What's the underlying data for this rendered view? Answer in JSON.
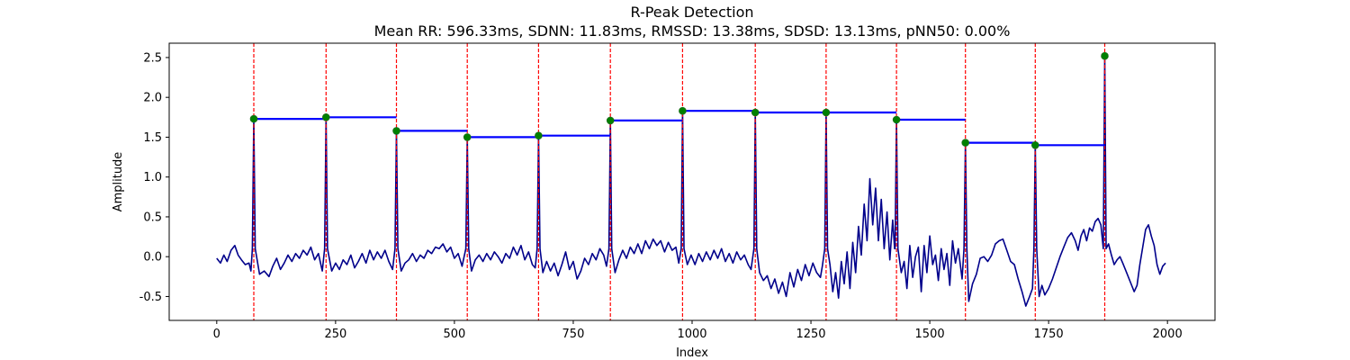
{
  "chart_data": {
    "type": "line",
    "title": "R-Peak Detection",
    "subtitle": "Mean RR: 596.33ms, SDNN: 11.83ms, RMSSD: 13.38ms, SDSD: 13.13ms, pNN50: 0.00%",
    "xlabel": "Index",
    "ylabel": "Amplitude",
    "xlim": [
      -100,
      2100
    ],
    "ylim": [
      -0.8,
      2.68
    ],
    "xticks": [
      0,
      250,
      500,
      750,
      1000,
      1250,
      1500,
      1750,
      2000
    ],
    "yticks": [
      -0.5,
      0.0,
      0.5,
      1.0,
      1.5,
      2.0,
      2.5
    ],
    "grid": false,
    "colors": {
      "signal": "#00008b",
      "peak_lines": "#ff0000",
      "rr_segments": "#0000ff",
      "peak_markers": "#008000"
    },
    "peaks": [
      {
        "x": 78,
        "y": 1.73
      },
      {
        "x": 230,
        "y": 1.75
      },
      {
        "x": 378,
        "y": 1.58
      },
      {
        "x": 527,
        "y": 1.5
      },
      {
        "x": 677,
        "y": 1.52
      },
      {
        "x": 828,
        "y": 1.71
      },
      {
        "x": 980,
        "y": 1.83
      },
      {
        "x": 1133,
        "y": 1.81
      },
      {
        "x": 1282,
        "y": 1.81
      },
      {
        "x": 1430,
        "y": 1.72
      },
      {
        "x": 1575,
        "y": 1.43
      },
      {
        "x": 1722,
        "y": 1.4
      },
      {
        "x": 1868,
        "y": 2.52
      }
    ],
    "baseline": [
      [
        0,
        -0.02
      ],
      [
        8,
        -0.08
      ],
      [
        15,
        0.02
      ],
      [
        22,
        -0.06
      ],
      [
        30,
        0.08
      ],
      [
        38,
        0.14
      ],
      [
        45,
        0.02
      ],
      [
        52,
        -0.04
      ],
      [
        60,
        -0.1
      ],
      [
        68,
        -0.08
      ],
      [
        72,
        -0.18
      ],
      [
        90,
        -0.22
      ],
      [
        100,
        -0.18
      ],
      [
        110,
        -0.25
      ],
      [
        118,
        -0.12
      ],
      [
        126,
        -0.02
      ],
      [
        134,
        -0.16
      ],
      [
        142,
        -0.08
      ],
      [
        150,
        0.02
      ],
      [
        158,
        -0.06
      ],
      [
        166,
        0.04
      ],
      [
        174,
        -0.02
      ],
      [
        182,
        0.08
      ],
      [
        190,
        0.02
      ],
      [
        198,
        0.12
      ],
      [
        206,
        -0.04
      ],
      [
        214,
        0.04
      ],
      [
        222,
        -0.18
      ],
      [
        242,
        -0.18
      ],
      [
        250,
        -0.08
      ],
      [
        258,
        -0.16
      ],
      [
        266,
        -0.04
      ],
      [
        274,
        -0.1
      ],
      [
        282,
        0.02
      ],
      [
        290,
        -0.14
      ],
      [
        298,
        -0.06
      ],
      [
        306,
        0.04
      ],
      [
        314,
        -0.08
      ],
      [
        322,
        0.08
      ],
      [
        330,
        -0.04
      ],
      [
        338,
        0.06
      ],
      [
        346,
        -0.02
      ],
      [
        354,
        0.08
      ],
      [
        362,
        -0.06
      ],
      [
        370,
        -0.16
      ],
      [
        388,
        -0.18
      ],
      [
        396,
        -0.08
      ],
      [
        404,
        -0.04
      ],
      [
        412,
        0.04
      ],
      [
        420,
        -0.06
      ],
      [
        428,
        0.02
      ],
      [
        436,
        -0.02
      ],
      [
        444,
        0.08
      ],
      [
        452,
        0.04
      ],
      [
        460,
        0.12
      ],
      [
        468,
        0.1
      ],
      [
        476,
        0.16
      ],
      [
        484,
        0.06
      ],
      [
        492,
        0.12
      ],
      [
        500,
        -0.02
      ],
      [
        508,
        0.04
      ],
      [
        516,
        -0.12
      ],
      [
        536,
        -0.18
      ],
      [
        544,
        -0.04
      ],
      [
        552,
        0.02
      ],
      [
        560,
        -0.06
      ],
      [
        568,
        0.04
      ],
      [
        576,
        -0.04
      ],
      [
        584,
        0.06
      ],
      [
        592,
        0.0
      ],
      [
        600,
        -0.08
      ],
      [
        608,
        0.04
      ],
      [
        616,
        -0.02
      ],
      [
        624,
        0.12
      ],
      [
        632,
        0.02
      ],
      [
        640,
        0.14
      ],
      [
        648,
        -0.04
      ],
      [
        656,
        0.06
      ],
      [
        664,
        -0.1
      ],
      [
        670,
        -0.14
      ],
      [
        686,
        -0.2
      ],
      [
        694,
        -0.06
      ],
      [
        702,
        -0.18
      ],
      [
        710,
        -0.08
      ],
      [
        718,
        -0.24
      ],
      [
        726,
        -0.1
      ],
      [
        734,
        0.06
      ],
      [
        742,
        -0.16
      ],
      [
        750,
        -0.06
      ],
      [
        758,
        -0.28
      ],
      [
        766,
        -0.18
      ],
      [
        774,
        -0.02
      ],
      [
        782,
        -0.1
      ],
      [
        790,
        0.04
      ],
      [
        798,
        -0.04
      ],
      [
        806,
        0.1
      ],
      [
        814,
        0.02
      ],
      [
        820,
        -0.12
      ],
      [
        838,
        -0.2
      ],
      [
        846,
        -0.04
      ],
      [
        854,
        0.08
      ],
      [
        862,
        -0.02
      ],
      [
        870,
        0.12
      ],
      [
        878,
        0.04
      ],
      [
        886,
        0.16
      ],
      [
        894,
        0.04
      ],
      [
        902,
        0.2
      ],
      [
        910,
        0.1
      ],
      [
        918,
        0.22
      ],
      [
        926,
        0.14
      ],
      [
        934,
        0.2
      ],
      [
        942,
        0.06
      ],
      [
        950,
        0.18
      ],
      [
        958,
        0.08
      ],
      [
        966,
        0.12
      ],
      [
        972,
        -0.08
      ],
      [
        990,
        -0.1
      ],
      [
        998,
        0.02
      ],
      [
        1006,
        -0.1
      ],
      [
        1014,
        0.04
      ],
      [
        1022,
        -0.06
      ],
      [
        1030,
        0.06
      ],
      [
        1038,
        -0.04
      ],
      [
        1046,
        0.08
      ],
      [
        1054,
        -0.02
      ],
      [
        1062,
        0.1
      ],
      [
        1070,
        -0.06
      ],
      [
        1078,
        0.04
      ],
      [
        1086,
        -0.08
      ],
      [
        1094,
        0.06
      ],
      [
        1102,
        -0.04
      ],
      [
        1110,
        0.02
      ],
      [
        1118,
        -0.1
      ],
      [
        1124,
        -0.16
      ],
      [
        1142,
        -0.2
      ],
      [
        1150,
        -0.3
      ],
      [
        1158,
        -0.24
      ],
      [
        1166,
        -0.4
      ],
      [
        1174,
        -0.28
      ],
      [
        1182,
        -0.46
      ],
      [
        1190,
        -0.32
      ],
      [
        1198,
        -0.5
      ],
      [
        1206,
        -0.2
      ],
      [
        1214,
        -0.38
      ],
      [
        1222,
        -0.16
      ],
      [
        1230,
        -0.3
      ],
      [
        1238,
        -0.1
      ],
      [
        1246,
        -0.24
      ],
      [
        1254,
        -0.08
      ],
      [
        1262,
        -0.2
      ],
      [
        1270,
        -0.26
      ],
      [
        1274,
        -0.12
      ],
      [
        1290,
        -0.1
      ],
      [
        1296,
        -0.44
      ],
      [
        1302,
        -0.2
      ],
      [
        1308,
        -0.52
      ],
      [
        1314,
        -0.06
      ],
      [
        1320,
        -0.34
      ],
      [
        1326,
        0.06
      ],
      [
        1332,
        -0.4
      ],
      [
        1338,
        0.18
      ],
      [
        1344,
        -0.2
      ],
      [
        1350,
        0.38
      ],
      [
        1356,
        0.02
      ],
      [
        1362,
        0.66
      ],
      [
        1368,
        0.2
      ],
      [
        1374,
        0.98
      ],
      [
        1380,
        0.4
      ],
      [
        1386,
        0.86
      ],
      [
        1392,
        0.2
      ],
      [
        1398,
        0.72
      ],
      [
        1404,
        0.1
      ],
      [
        1410,
        0.56
      ],
      [
        1416,
        -0.04
      ],
      [
        1422,
        0.46
      ],
      [
        1426,
        0.1
      ],
      [
        1440,
        -0.2
      ],
      [
        1446,
        -0.06
      ],
      [
        1452,
        -0.4
      ],
      [
        1458,
        0.14
      ],
      [
        1464,
        -0.26
      ],
      [
        1470,
        0.0
      ],
      [
        1476,
        0.12
      ],
      [
        1482,
        -0.44
      ],
      [
        1488,
        0.14
      ],
      [
        1494,
        -0.2
      ],
      [
        1500,
        0.26
      ],
      [
        1506,
        -0.1
      ],
      [
        1512,
        0.02
      ],
      [
        1518,
        -0.3
      ],
      [
        1524,
        0.1
      ],
      [
        1530,
        -0.16
      ],
      [
        1536,
        0.04
      ],
      [
        1542,
        -0.36
      ],
      [
        1548,
        0.2
      ],
      [
        1554,
        -0.08
      ],
      [
        1560,
        0.1
      ],
      [
        1568,
        -0.28
      ],
      [
        1582,
        -0.56
      ],
      [
        1590,
        -0.34
      ],
      [
        1598,
        -0.22
      ],
      [
        1606,
        -0.02
      ],
      [
        1614,
        0.0
      ],
      [
        1622,
        -0.06
      ],
      [
        1630,
        0.02
      ],
      [
        1638,
        0.16
      ],
      [
        1646,
        0.2
      ],
      [
        1654,
        0.22
      ],
      [
        1662,
        0.08
      ],
      [
        1670,
        -0.06
      ],
      [
        1678,
        -0.1
      ],
      [
        1686,
        -0.28
      ],
      [
        1694,
        -0.44
      ],
      [
        1702,
        -0.62
      ],
      [
        1710,
        -0.5
      ],
      [
        1716,
        -0.4
      ],
      [
        1730,
        -0.5
      ],
      [
        1736,
        -0.36
      ],
      [
        1742,
        -0.48
      ],
      [
        1750,
        -0.4
      ],
      [
        1758,
        -0.28
      ],
      [
        1766,
        -0.14
      ],
      [
        1774,
        0.0
      ],
      [
        1782,
        0.12
      ],
      [
        1790,
        0.24
      ],
      [
        1798,
        0.3
      ],
      [
        1806,
        0.2
      ],
      [
        1812,
        0.08
      ],
      [
        1818,
        0.26
      ],
      [
        1824,
        0.34
      ],
      [
        1830,
        0.2
      ],
      [
        1836,
        0.36
      ],
      [
        1842,
        0.32
      ],
      [
        1848,
        0.44
      ],
      [
        1854,
        0.48
      ],
      [
        1860,
        0.4
      ],
      [
        1876,
        0.16
      ],
      [
        1882,
        0.02
      ],
      [
        1888,
        -0.1
      ],
      [
        1894,
        -0.04
      ],
      [
        1900,
        0.0
      ],
      [
        1906,
        -0.08
      ],
      [
        1914,
        -0.2
      ],
      [
        1922,
        -0.32
      ],
      [
        1930,
        -0.44
      ],
      [
        1936,
        -0.36
      ],
      [
        1942,
        -0.1
      ],
      [
        1948,
        0.12
      ],
      [
        1954,
        0.34
      ],
      [
        1960,
        0.4
      ],
      [
        1966,
        0.26
      ],
      [
        1972,
        0.14
      ],
      [
        1978,
        -0.1
      ],
      [
        1984,
        -0.22
      ],
      [
        1990,
        -0.12
      ],
      [
        1996,
        -0.08
      ]
    ]
  }
}
